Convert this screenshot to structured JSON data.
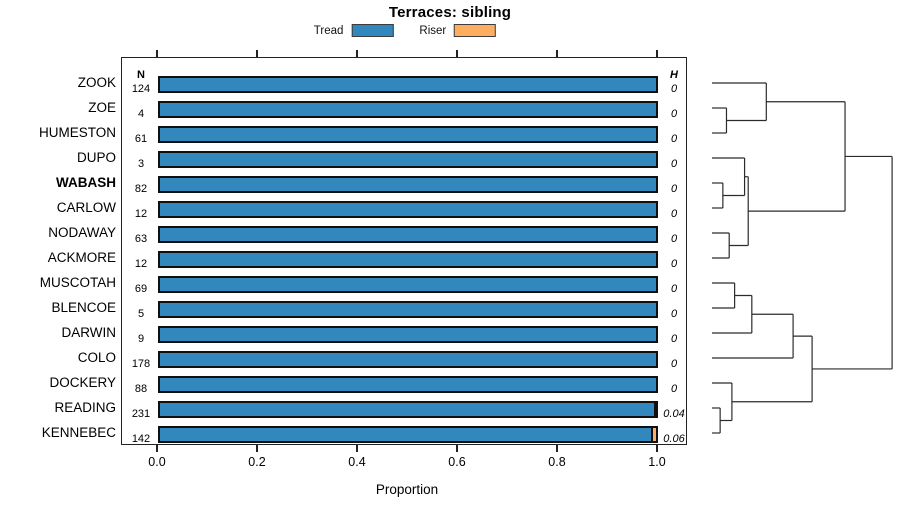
{
  "title": "Terraces: sibling",
  "legend": {
    "items": [
      {
        "label": "Tread",
        "color": "#3288BD"
      },
      {
        "label": "Riser",
        "color": "#FDAE61"
      }
    ]
  },
  "columns": {
    "n_header": "N",
    "h_header": "H"
  },
  "xlabel": "Proportion",
  "colors": {
    "tread": "#3288BD",
    "riser": "#FDAE61",
    "bar_border": "#101010",
    "panel_border": "#222222",
    "dendrogram_line": "#2b2b2b"
  },
  "chart_data": {
    "type": "bar",
    "orientation": "horizontal",
    "stacked": true,
    "title": "Terraces: sibling",
    "xlabel": "Proportion",
    "xlim": [
      0,
      1
    ],
    "x_ticks": [
      0.0,
      0.2,
      0.4,
      0.6,
      0.8,
      1.0
    ],
    "x_tick_labels": [
      "0.0",
      "0.2",
      "0.4",
      "0.6",
      "0.8",
      "1.0"
    ],
    "grid": false,
    "legend_position": "top",
    "categories": [
      "ZOOK",
      "ZOE",
      "HUMESTON",
      "DUPO",
      "WABASH",
      "CARLOW",
      "NODAWAY",
      "ACKMORE",
      "MUSCOTAH",
      "BLENCOE",
      "DARWIN",
      "COLO",
      "DOCKERY",
      "READING",
      "KENNEBEC"
    ],
    "emphasized_category": "WABASH",
    "n_values": [
      124,
      4,
      61,
      3,
      82,
      12,
      63,
      12,
      69,
      5,
      9,
      178,
      88,
      231,
      142
    ],
    "h_values": [
      "0",
      "0",
      "0",
      "0",
      "0",
      "0",
      "0",
      "0",
      "0",
      "0",
      "0",
      "0",
      "0",
      "0.04",
      "0.06"
    ],
    "series": [
      {
        "name": "Tread",
        "color": "#3288BD",
        "values": [
          1,
          1,
          1,
          1,
          1,
          1,
          1,
          1,
          1,
          1,
          1,
          1,
          1,
          0.996,
          0.99
        ]
      },
      {
        "name": "Riser",
        "color": "#FDAE61",
        "values": [
          0,
          0,
          0,
          0,
          0,
          0,
          0,
          0,
          0,
          0,
          0,
          0,
          0,
          0.004,
          0.01
        ]
      }
    ],
    "dendrogram": {
      "note": "heights are fractions of dendrogram width, leaves at 0; leaf numbers index categories",
      "tree": {
        "a": {
          "a": {
            "a": 0,
            "b": {
              "a": 1,
              "b": 2,
              "h": 0.08
            },
            "h": 0.3
          },
          "b": {
            "a": {
              "a": 3,
              "b": {
                "a": 4,
                "b": 5,
                "h": 0.06
              },
              "h": 0.18
            },
            "b": {
              "a": 6,
              "b": 7,
              "h": 0.095
            },
            "h": 0.2
          },
          "h": 0.735
        },
        "b": {
          "a": {
            "a": {
              "a": {
                "a": 8,
                "b": 9,
                "h": 0.125
              },
              "b": 10,
              "h": 0.22
            },
            "b": 11,
            "h": 0.448
          },
          "b": {
            "a": 12,
            "b": {
              "a": 13,
              "b": 14,
              "h": 0.045
            },
            "h": 0.11
          },
          "h": 0.553
        },
        "h": 0.995
      }
    }
  }
}
